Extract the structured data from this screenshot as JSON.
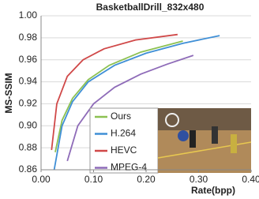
{
  "chart_data": {
    "type": "line",
    "title": "BasketballDrill_832x480",
    "x_label": "Rate(bpp)",
    "y_label": "MS-SSIM",
    "xlim": [
      0,
      0.4
    ],
    "ylim": [
      0.86,
      1.0
    ],
    "xticks": [
      {
        "value": 0,
        "label": "0.00"
      },
      {
        "value": 0.1,
        "label": "0.10"
      },
      {
        "value": 0.2,
        "label": "0.20"
      },
      {
        "value": 0.3,
        "label": "0.30"
      },
      {
        "value": 0.4,
        "label": "0.40"
      }
    ],
    "yticks": [
      0.86,
      0.88,
      {
        "value": 0.9,
        "label": "0.90"
      },
      0.92,
      0.94,
      0.96,
      0.98,
      {
        "value": 1.0,
        "label": "1.00"
      }
    ],
    "grid": true,
    "series": [
      {
        "name": "Ours",
        "color": "#8cc152",
        "x": [
          0.027,
          0.04,
          0.06,
          0.09,
          0.13,
          0.19,
          0.27
        ],
        "values": [
          0.876,
          0.905,
          0.925,
          0.942,
          0.955,
          0.967,
          0.977
        ]
      },
      {
        "name": "H.264",
        "color": "#3f8fd6",
        "x": [
          0.025,
          0.04,
          0.06,
          0.09,
          0.14,
          0.2,
          0.27,
          0.34
        ],
        "values": [
          0.86,
          0.9,
          0.922,
          0.94,
          0.955,
          0.966,
          0.975,
          0.982
        ]
      },
      {
        "name": "HEVC",
        "color": "#d04848",
        "x": [
          0.02,
          0.03,
          0.05,
          0.08,
          0.12,
          0.18,
          0.26
        ],
        "values": [
          0.878,
          0.92,
          0.945,
          0.96,
          0.97,
          0.978,
          0.983
        ]
      },
      {
        "name": "MPEG-4",
        "color": "#8e6bb8",
        "x": [
          0.05,
          0.07,
          0.1,
          0.14,
          0.19,
          0.24,
          0.29
        ],
        "values": [
          0.868,
          0.9,
          0.92,
          0.935,
          0.947,
          0.956,
          0.964
        ]
      }
    ]
  }
}
